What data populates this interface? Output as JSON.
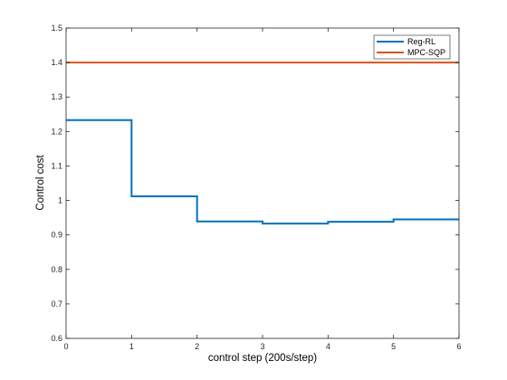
{
  "chart_data": {
    "type": "line",
    "xlabel": "control step (200s/step)",
    "ylabel": "Control cost",
    "xlim": [
      0,
      6
    ],
    "ylim": [
      0.6,
      1.5
    ],
    "x_ticks": [
      0,
      1,
      2,
      3,
      4,
      5,
      6
    ],
    "y_ticks": [
      0.6,
      0.7,
      0.8,
      0.9,
      1,
      1.1,
      1.2,
      1.3,
      1.4,
      1.5
    ],
    "x_tick_labels": [
      "0",
      "1",
      "2",
      "3",
      "4",
      "5",
      "6"
    ],
    "y_tick_labels": [
      "0.6",
      "0.7",
      "0.8",
      "0.9",
      "1",
      "1.1",
      "1.2",
      "1.3",
      "1.4",
      "1.5"
    ],
    "grid": false,
    "legend_position": "top-right",
    "series": [
      {
        "name": "Reg-RL",
        "color": "#0072BD",
        "step": true,
        "x": [
          0,
          1,
          2,
          3,
          4,
          5,
          6
        ],
        "values": [
          1.233,
          1.012,
          0.939,
          0.933,
          0.938,
          0.945,
          0.945
        ]
      },
      {
        "name": "MPC-SQP",
        "color": "#D95319",
        "step": true,
        "x": [
          0,
          6
        ],
        "values": [
          1.4,
          1.4
        ]
      }
    ]
  }
}
